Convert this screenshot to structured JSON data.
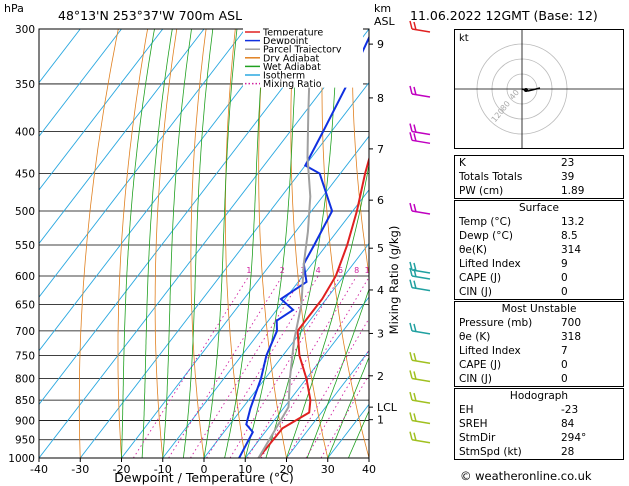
{
  "header": {
    "unit_hpa": "hPa",
    "location": "48°13'N  253°37'W  700m  ASL",
    "unit_km": "km",
    "unit_asl": "ASL",
    "datetime": "11.06.2022  12GMT  (Base: 12)"
  },
  "chart_data": {
    "type": "line",
    "subtype": "skew-T log-P",
    "xlabel": "Dewpoint / Temperature (°C)",
    "ylabel_right": "Mixing Ratio (g/kg)",
    "xlim": [
      -40,
      40
    ],
    "ylim": [
      1000,
      300
    ],
    "x_ticks": [
      "-40",
      "-30",
      "-20",
      "-10",
      "0",
      "10",
      "20",
      "30",
      "40"
    ],
    "pressure_levels": [
      300,
      350,
      400,
      450,
      500,
      550,
      600,
      650,
      700,
      750,
      800,
      850,
      900,
      950,
      1000
    ],
    "km_ticks": [
      {
        "label": "9",
        "p": 313
      },
      {
        "label": "8",
        "p": 364
      },
      {
        "label": "7",
        "p": 420
      },
      {
        "label": "6",
        "p": 485
      },
      {
        "label": "5",
        "p": 555
      },
      {
        "label": "4",
        "p": 624
      },
      {
        "label": "3",
        "p": 705
      },
      {
        "label": "2",
        "p": 794
      },
      {
        "label": "1",
        "p": 898
      },
      {
        "label": "LCL",
        "p": 867
      }
    ],
    "mixing_ratio_labels": [
      "1",
      "2",
      "3",
      "4",
      "6",
      "8",
      "10",
      "15",
      "20",
      "25"
    ],
    "legend": [
      "Temperature",
      "Dewpoint",
      "Parcel Trajectory",
      "Dry Adiabat",
      "Wet Adiabat",
      "Isotherm",
      "Mixing Ratio"
    ],
    "series": [
      {
        "name": "Temperature",
        "color": "#e02020",
        "points": [
          [
            13.2,
            1000
          ],
          [
            13.5,
            920
          ],
          [
            17,
            880
          ],
          [
            15,
            850
          ],
          [
            10,
            800
          ],
          [
            4,
            750
          ],
          [
            -1,
            700
          ],
          [
            -1,
            660
          ],
          [
            -1,
            640
          ],
          [
            -2,
            600
          ],
          [
            -5,
            550
          ],
          [
            -9,
            500
          ],
          [
            -14,
            450
          ],
          [
            -19,
            400
          ],
          [
            -25,
            350
          ],
          [
            -31,
            300
          ]
        ]
      },
      {
        "name": "Dewpoint",
        "color": "#1030e0",
        "points": [
          [
            8.5,
            1000
          ],
          [
            7,
            930
          ],
          [
            4,
            910
          ],
          [
            2,
            870
          ],
          [
            -1,
            800
          ],
          [
            -4,
            750
          ],
          [
            -6,
            700
          ],
          [
            -8,
            680
          ],
          [
            -6,
            660
          ],
          [
            -11,
            640
          ],
          [
            -8,
            610
          ],
          [
            -12,
            580
          ],
          [
            -13,
            550
          ],
          [
            -15,
            500
          ],
          [
            -25,
            450
          ],
          [
            -30,
            440
          ],
          [
            -32,
            400
          ],
          [
            -35,
            350
          ],
          [
            -39,
            300
          ]
        ]
      },
      {
        "name": "Parcel Trajectory",
        "color": "#a0a0a0",
        "points": [
          [
            13.2,
            1000
          ],
          [
            11,
            867
          ],
          [
            6,
            800
          ],
          [
            0,
            720
          ],
          [
            -5,
            650
          ],
          [
            -12,
            580
          ],
          [
            -17,
            530
          ],
          [
            -23,
            480
          ],
          [
            -31,
            430
          ],
          [
            -39,
            380
          ],
          [
            -48,
            330
          ],
          [
            -55,
            300
          ]
        ]
      }
    ],
    "colors": {
      "isotherm": "#2aa8e0",
      "dry_adiabat": "#e08020",
      "wet_adiabat": "#20a020",
      "mixing_ratio": "#d020a0"
    },
    "wind_barb_colors": [
      "#e02020",
      "#c000c0",
      "#20a0a0",
      "#a0c020"
    ]
  },
  "indices": {
    "rows": [
      {
        "label": "K",
        "value": "23"
      },
      {
        "label": "Totals Totals",
        "value": "39"
      },
      {
        "label": "PW (cm)",
        "value": "1.89"
      }
    ]
  },
  "surface": {
    "title": "Surface",
    "rows": [
      {
        "label": "Temp (°C)",
        "value": "13.2"
      },
      {
        "label": "Dewp (°C)",
        "value": "8.5"
      },
      {
        "label": "θe(K)",
        "value": "314"
      },
      {
        "label": "Lifted Index",
        "value": "9"
      },
      {
        "label": "CAPE (J)",
        "value": "0"
      },
      {
        "label": "CIN (J)",
        "value": "0"
      }
    ]
  },
  "unstable": {
    "title": "Most Unstable",
    "rows": [
      {
        "label": "Pressure (mb)",
        "value": "700"
      },
      {
        "label": "θe (K)",
        "value": "318"
      },
      {
        "label": "Lifted Index",
        "value": "7"
      },
      {
        "label": "CAPE (J)",
        "value": "0"
      },
      {
        "label": "CIN (J)",
        "value": "0"
      }
    ]
  },
  "hodograph": {
    "title": "Hodograph",
    "unit": "kt",
    "rings": [
      "40",
      "80",
      "120"
    ],
    "rows": [
      {
        "label": "EH",
        "value": "-23"
      },
      {
        "label": "SREH",
        "value": "84"
      },
      {
        "label": "StmDir",
        "value": "294°"
      },
      {
        "label": "StmSpd (kt)",
        "value": "28"
      }
    ]
  },
  "credit": "© weatheronline.co.uk"
}
